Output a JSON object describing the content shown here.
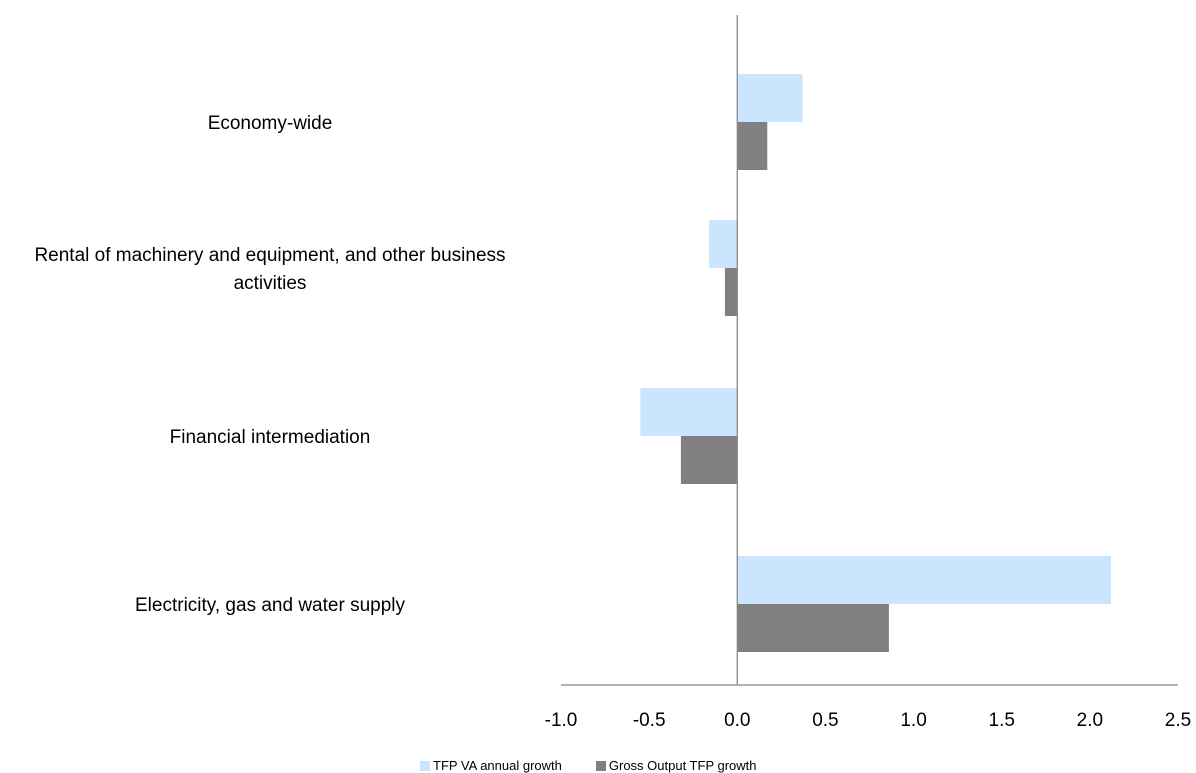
{
  "chart_data": {
    "type": "bar",
    "orientation": "horizontal",
    "categories": [
      "Economy-wide",
      "Rental of machinery and equipment, and other business activities",
      "Financial intermediation",
      "Electricity, gas and water supply"
    ],
    "category_lines": [
      [
        "Economy-wide"
      ],
      [
        "Rental of machinery and equipment, and other business",
        "activities"
      ],
      [
        "Financial intermediation"
      ],
      [
        "Electricity, gas and water supply"
      ]
    ],
    "series": [
      {
        "name": "TFP VA annual growth",
        "color": "#cce5ff",
        "values": [
          0.37,
          -0.16,
          -0.55,
          2.12
        ]
      },
      {
        "name": "Gross Output TFP growth",
        "color": "#808080",
        "values": [
          0.17,
          -0.07,
          -0.32,
          0.86
        ]
      }
    ],
    "xlim": [
      -1.0,
      2.5
    ],
    "xticks": [
      "-1.0",
      "-0.5",
      "0.0",
      "0.5",
      "1.0",
      "1.5",
      "2.0",
      "2.5"
    ],
    "xtick_values": [
      -1.0,
      -0.5,
      0.0,
      0.5,
      1.0,
      1.5,
      2.0,
      2.5
    ],
    "title": "",
    "xlabel": "",
    "ylabel": "",
    "grid": false,
    "legend_position": "bottom"
  }
}
